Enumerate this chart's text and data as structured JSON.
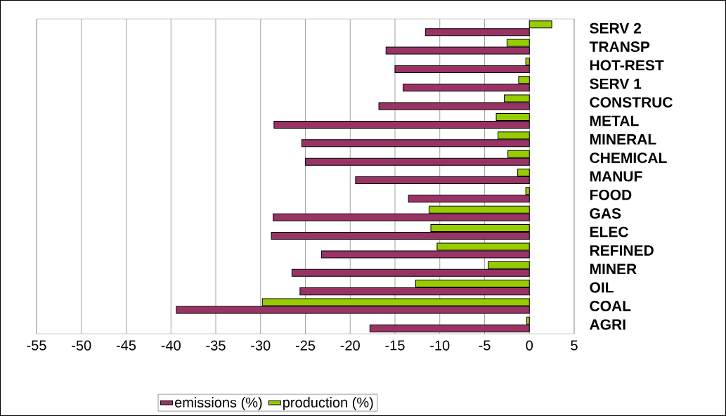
{
  "chart_data": {
    "type": "bar",
    "orientation": "horizontal",
    "categories": [
      "SERV 2",
      "TRANSP",
      "HOT-REST",
      "SERV 1",
      "CONSTRUC",
      "METAL",
      "MINERAL",
      "CHEMICAL",
      "MANUF",
      "FOOD",
      "GAS",
      "ELEC",
      "REFINED",
      "MINER",
      "OIL",
      "COAL",
      "AGRI"
    ],
    "series": [
      {
        "name": "emissions (%)",
        "color": "#993366",
        "values": [
          -11.6,
          -16.0,
          -15.0,
          -14.1,
          -16.8,
          -28.5,
          -25.4,
          -25.0,
          -19.4,
          -13.5,
          -28.6,
          -28.8,
          -23.2,
          -26.5,
          -25.6,
          -39.4,
          -17.8
        ]
      },
      {
        "name": "production (%)",
        "color": "#99cc00",
        "values": [
          2.5,
          -2.5,
          -0.4,
          -1.2,
          -2.8,
          -3.7,
          -3.5,
          -2.4,
          -1.3,
          -0.4,
          -11.2,
          -11.0,
          -10.3,
          -4.6,
          -12.7,
          -29.8,
          -0.3
        ]
      }
    ],
    "xlim": [
      -55,
      5
    ],
    "xticks": [
      -55,
      -50,
      -45,
      -40,
      -35,
      -30,
      -25,
      -20,
      -15,
      -10,
      -5,
      0,
      5
    ],
    "grid": "x",
    "legend": "bottom"
  }
}
